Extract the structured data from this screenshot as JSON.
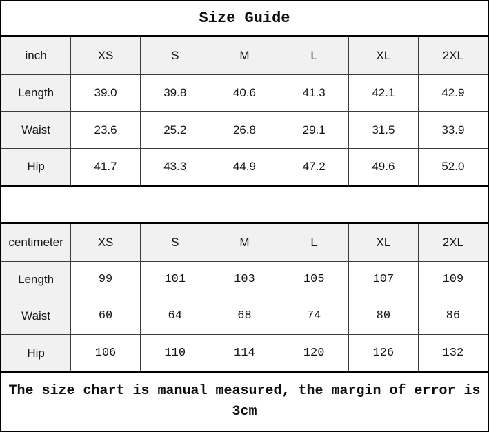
{
  "title": "Size Guide",
  "colors": {
    "cell_shade_bg": "#f1f1f1",
    "outer_border": "#000000",
    "inner_border": "#3c3c3c",
    "text": "#151515"
  },
  "size_tables": [
    {
      "unit": "inch",
      "columns": [
        "XS",
        "S",
        "M",
        "L",
        "XL",
        "2XL"
      ],
      "rows": [
        {
          "label": "Length",
          "values": [
            "39.0",
            "39.8",
            "40.6",
            "41.3",
            "42.1",
            "42.9"
          ]
        },
        {
          "label": "Waist",
          "values": [
            "23.6",
            "25.2",
            "26.8",
            "29.1",
            "31.5",
            "33.9"
          ]
        },
        {
          "label": "Hip",
          "values": [
            "41.7",
            "43.3",
            "44.9",
            "47.2",
            "49.6",
            "52.0"
          ]
        }
      ]
    },
    {
      "unit": "centimeter",
      "columns": [
        "XS",
        "S",
        "M",
        "L",
        "XL",
        "2XL"
      ],
      "rows": [
        {
          "label": "Length",
          "values": [
            "99",
            "101",
            "103",
            "105",
            "107",
            "109"
          ]
        },
        {
          "label": "Waist",
          "values": [
            "60",
            "64",
            "68",
            "74",
            "80",
            "86"
          ]
        },
        {
          "label": "Hip",
          "values": [
            "106",
            "110",
            "114",
            "120",
            "126",
            "132"
          ]
        }
      ]
    }
  ],
  "footer_note": "The size chart is manual measured, the margin of error is 3cm"
}
